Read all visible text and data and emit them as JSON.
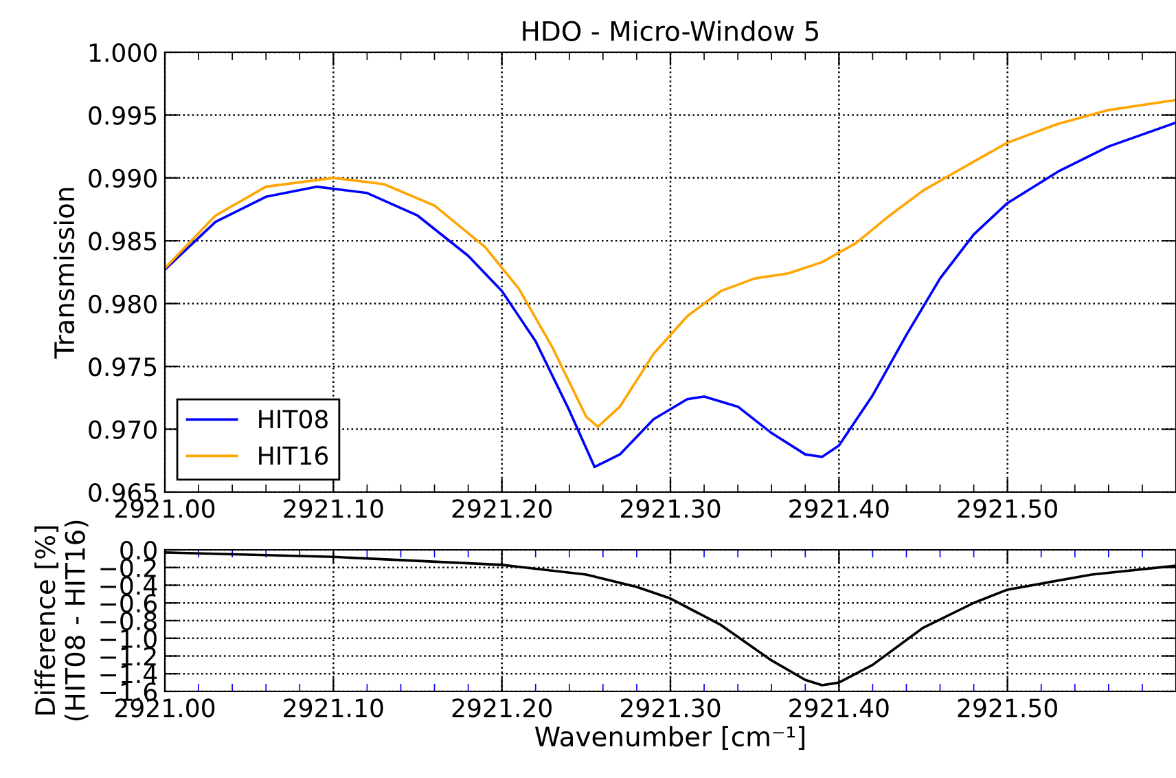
{
  "chart_data": [
    {
      "type": "line",
      "title": "HDO - Micro-Window 5",
      "ylabel": "Transmission",
      "xlim": [
        2921.0,
        2921.6
      ],
      "xticks": [
        {
          "value": 2921.0,
          "label": "2921.00"
        },
        {
          "value": 2921.1,
          "label": "2921.10"
        },
        {
          "value": 2921.2,
          "label": "2921.20"
        },
        {
          "value": 2921.3,
          "label": "2921.30"
        },
        {
          "value": 2921.4,
          "label": "2921.40"
        },
        {
          "value": 2921.5,
          "label": "2921.50"
        }
      ],
      "ylim": [
        0.965,
        1.0
      ],
      "yticks": [
        {
          "value": 0.965,
          "label": "0.965"
        },
        {
          "value": 0.97,
          "label": "0.970"
        },
        {
          "value": 0.975,
          "label": "0.975"
        },
        {
          "value": 0.98,
          "label": "0.980"
        },
        {
          "value": 0.985,
          "label": "0.985"
        },
        {
          "value": 0.99,
          "label": "0.990"
        },
        {
          "value": 0.995,
          "label": "0.995"
        },
        {
          "value": 1.0,
          "label": "1.000"
        }
      ],
      "grid": true,
      "legend": "bottom left",
      "series": [
        {
          "name": "HIT08",
          "color": "#0000ff",
          "x": [
            2921.0,
            2921.03,
            2921.06,
            2921.09,
            2921.12,
            2921.15,
            2921.18,
            2921.2,
            2921.22,
            2921.24,
            2921.255,
            2921.27,
            2921.29,
            2921.31,
            2921.32,
            2921.34,
            2921.36,
            2921.38,
            2921.39,
            2921.4,
            2921.42,
            2921.44,
            2921.46,
            2921.48,
            2921.5,
            2921.53,
            2921.56,
            2921.6
          ],
          "values": [
            0.9827,
            0.9865,
            0.9885,
            0.9893,
            0.9888,
            0.987,
            0.9838,
            0.981,
            0.977,
            0.9715,
            0.967,
            0.968,
            0.9708,
            0.9724,
            0.9726,
            0.9718,
            0.9697,
            0.968,
            0.9678,
            0.9687,
            0.9727,
            0.9775,
            0.982,
            0.9855,
            0.988,
            0.9905,
            0.9925,
            0.9944
          ]
        },
        {
          "name": "HIT16",
          "color": "#ffa500",
          "x": [
            2921.0,
            2921.03,
            2921.06,
            2921.1,
            2921.13,
            2921.16,
            2921.19,
            2921.21,
            2921.23,
            2921.25,
            2921.257,
            2921.27,
            2921.29,
            2921.31,
            2921.33,
            2921.35,
            2921.37,
            2921.39,
            2921.41,
            2921.43,
            2921.45,
            2921.48,
            2921.5,
            2921.53,
            2921.56,
            2921.6
          ],
          "values": [
            0.9828,
            0.987,
            0.9893,
            0.99,
            0.9895,
            0.9878,
            0.9845,
            0.9812,
            0.9765,
            0.971,
            0.9702,
            0.9718,
            0.976,
            0.979,
            0.981,
            0.982,
            0.9824,
            0.9833,
            0.9848,
            0.987,
            0.989,
            0.9913,
            0.9928,
            0.9943,
            0.9954,
            0.9962
          ]
        }
      ]
    },
    {
      "type": "line",
      "xlabel": "Wavenumber [cm⁻¹]",
      "ylabel": "Difference [%]\n(HIT08 - HIT16)",
      "xlim": [
        2921.0,
        2921.6
      ],
      "xticks": [
        {
          "value": 2921.0,
          "label": "2921.00"
        },
        {
          "value": 2921.1,
          "label": "2921.10"
        },
        {
          "value": 2921.2,
          "label": "2921.20"
        },
        {
          "value": 2921.3,
          "label": "2921.30"
        },
        {
          "value": 2921.4,
          "label": "2921.40"
        },
        {
          "value": 2921.5,
          "label": "2921.50"
        }
      ],
      "ylim": [
        -1.6,
        0.0
      ],
      "yticks": [
        {
          "value": -1.6,
          "label": "−1.6"
        },
        {
          "value": -1.4,
          "label": "−1.4"
        },
        {
          "value": -1.2,
          "label": "−1.2"
        },
        {
          "value": -1.0,
          "label": "−1.0"
        },
        {
          "value": -0.8,
          "label": "−0.8"
        },
        {
          "value": -0.6,
          "label": "−0.6"
        },
        {
          "value": -0.4,
          "label": "−0.4"
        },
        {
          "value": -0.2,
          "label": "−0.2"
        },
        {
          "value": 0.0,
          "label": "0.0"
        }
      ],
      "grid": true,
      "series": [
        {
          "color": "#000000",
          "x": [
            2921.0,
            2921.1,
            2921.2,
            2921.25,
            2921.28,
            2921.3,
            2921.33,
            2921.36,
            2921.38,
            2921.39,
            2921.4,
            2921.42,
            2921.45,
            2921.48,
            2921.5,
            2921.55,
            2921.6
          ],
          "values": [
            -0.03,
            -0.08,
            -0.17,
            -0.28,
            -0.42,
            -0.55,
            -0.85,
            -1.25,
            -1.47,
            -1.53,
            -1.5,
            -1.3,
            -0.88,
            -0.6,
            -0.45,
            -0.28,
            -0.18
          ]
        }
      ]
    }
  ]
}
